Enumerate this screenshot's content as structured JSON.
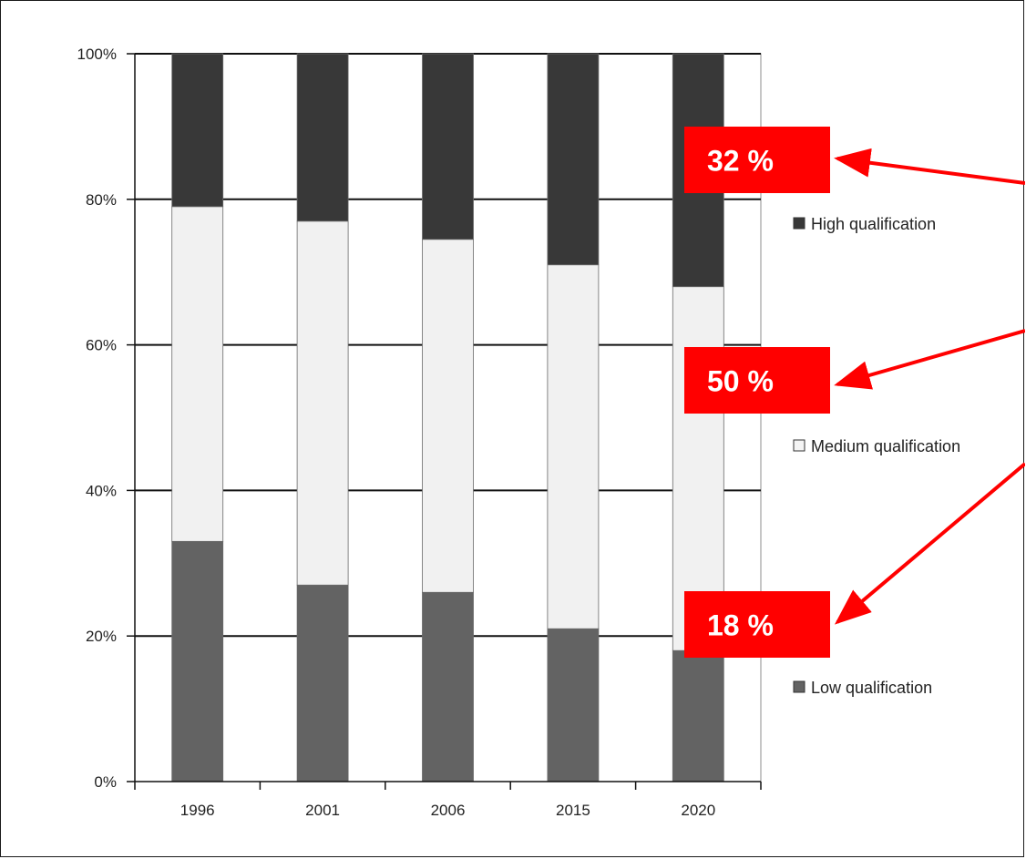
{
  "chart_data": {
    "type": "bar",
    "stacked": true,
    "categories": [
      "1996",
      "2001",
      "2006",
      "2015",
      "2020"
    ],
    "series": [
      {
        "name": "Low qualification",
        "values": [
          33,
          27,
          26,
          21,
          18
        ],
        "color": "#636363"
      },
      {
        "name": "Medium qualification",
        "values": [
          46,
          50,
          48.5,
          50,
          50
        ],
        "color": "#f1f1f1"
      },
      {
        "name": "High qualification",
        "values": [
          21,
          23,
          25.5,
          29,
          32
        ],
        "color": "#383838"
      }
    ],
    "ylim": [
      0,
      100
    ],
    "y_ticks": [
      "0%",
      "20%",
      "40%",
      "60%",
      "80%",
      "100%"
    ],
    "y_tick_values": [
      0,
      20,
      40,
      60,
      80,
      100
    ],
    "grid": true,
    "legend_placement": "right",
    "legend": [
      {
        "label": "High qualification",
        "color": "#383838"
      },
      {
        "label": "Medium qualification",
        "color": "#f4f4f4"
      },
      {
        "label": "Low qualification",
        "color": "#636363"
      }
    ],
    "annotations": [
      {
        "text": "32 %",
        "series": "High qualification",
        "category": "2020",
        "color": "#ff0000"
      },
      {
        "text": "50 %",
        "series": "Medium qualification",
        "category": "2020",
        "color": "#ff0000"
      },
      {
        "text": "18 %",
        "series": "Low qualification",
        "category": "2020",
        "color": "#ff0000"
      }
    ],
    "title": "",
    "xlabel": "",
    "ylabel": ""
  }
}
